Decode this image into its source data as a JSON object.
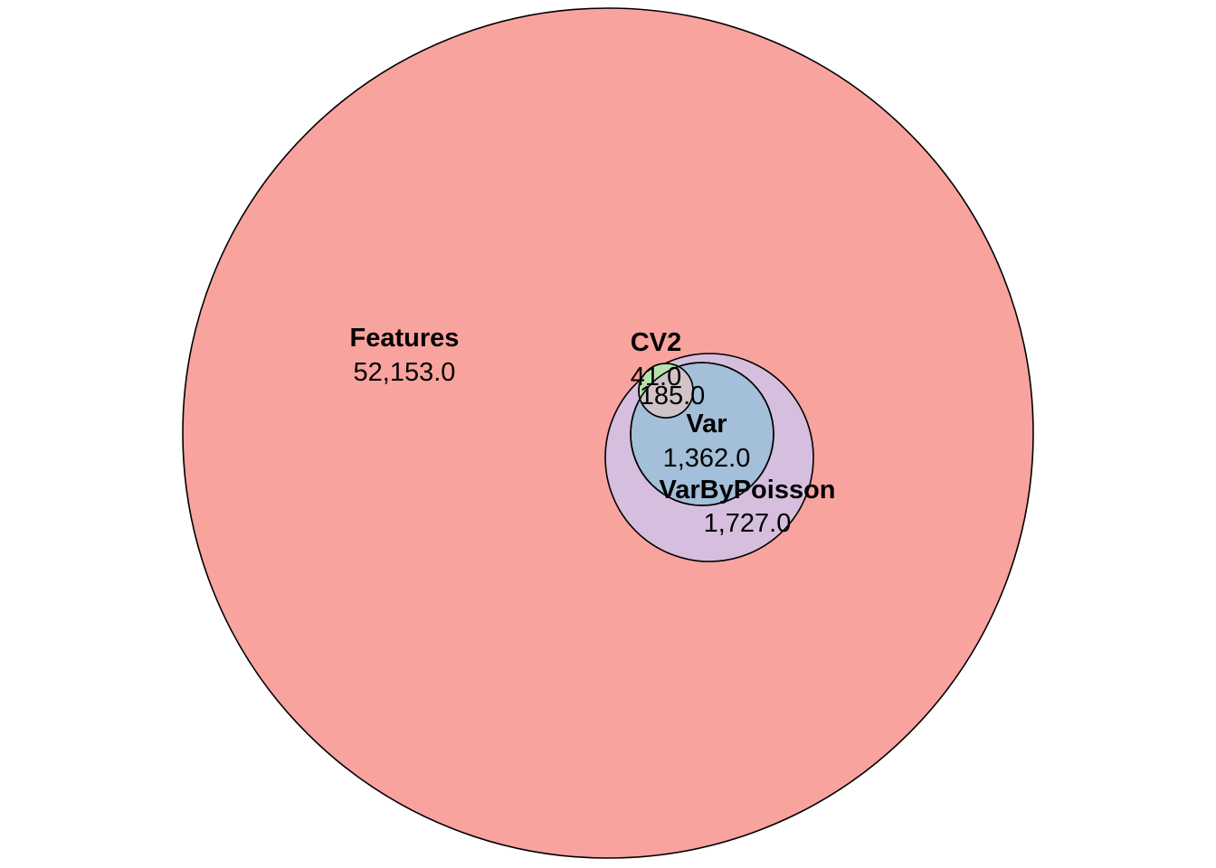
{
  "diagram": {
    "type": "venn",
    "sets": {
      "features": {
        "name": "Features",
        "count": "52,153.0",
        "color": "#f8a39e"
      },
      "varbypoisson": {
        "name": "VarByPoisson",
        "count": "1,727.0",
        "color": "#d5bede"
      },
      "var": {
        "name": "Var",
        "count": "1,362.0",
        "color": "#a3bfd9"
      },
      "cv2": {
        "name": "CV2",
        "count": "41.0",
        "color": "#b8e2ac"
      }
    },
    "intersections": {
      "cv2_var": {
        "count": "185.0",
        "color": "#d0c4c8"
      }
    },
    "outline_color": "#000000"
  }
}
